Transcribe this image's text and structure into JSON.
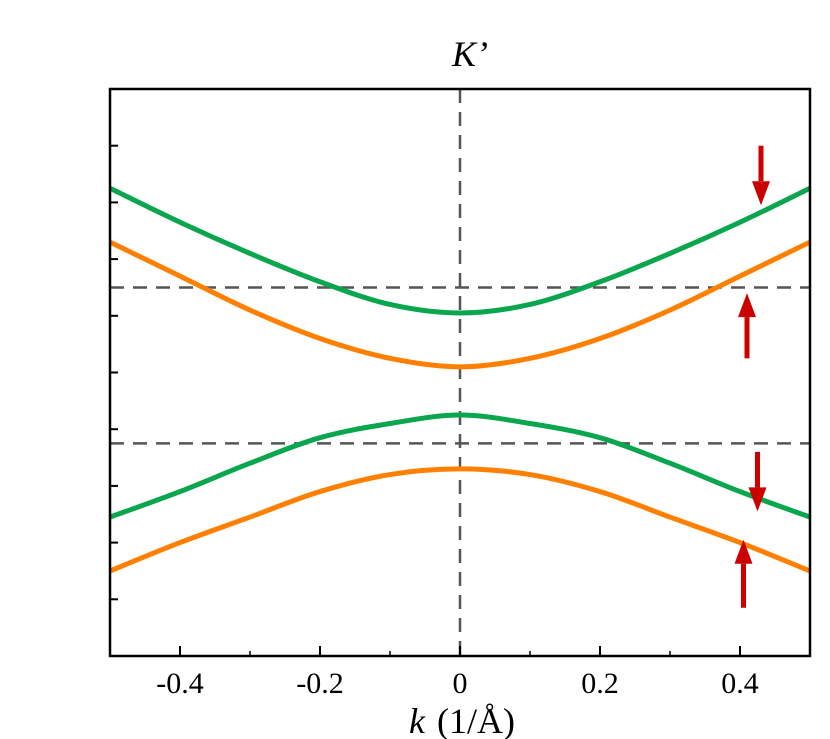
{
  "chart_data": {
    "type": "line",
    "title": "K’",
    "xlabel_var": "k",
    "xlabel_unit": "(1/Å)",
    "xlim": [
      -0.5,
      0.5
    ],
    "ylim": [
      -1.0,
      1.0
    ],
    "xticks": [
      -0.4,
      -0.2,
      0,
      0.2,
      0.4
    ],
    "xtick_labels": [
      "-0.4",
      "-0.2",
      "0",
      "0.2",
      "0.4"
    ],
    "yticks": [
      -0.8,
      -0.6,
      -0.4,
      -0.2,
      0.0,
      0.2,
      0.4,
      0.6,
      0.8
    ],
    "ytick_labels_shown": false,
    "reference_lines": {
      "vertical_x": 0,
      "horizontal_y": [
        0.3,
        -0.25
      ]
    },
    "colors": {
      "green": "#0aa64e",
      "orange": "#ff8000",
      "arrow": "#cc0000",
      "ref_line": "#555555"
    },
    "series": [
      {
        "band": "conduction",
        "spin": "down",
        "color": "green",
        "points": [
          [
            -0.5,
            0.65
          ],
          [
            -0.4,
            0.53
          ],
          [
            -0.3,
            0.42
          ],
          [
            -0.2,
            0.32
          ],
          [
            -0.1,
            0.24
          ],
          [
            0,
            0.21
          ],
          [
            0.1,
            0.24
          ],
          [
            0.2,
            0.32
          ],
          [
            0.3,
            0.42
          ],
          [
            0.4,
            0.53
          ],
          [
            0.5,
            0.65
          ]
        ]
      },
      {
        "band": "conduction",
        "spin": "up",
        "color": "orange",
        "points": [
          [
            -0.5,
            0.46
          ],
          [
            -0.4,
            0.34
          ],
          [
            -0.3,
            0.22
          ],
          [
            -0.2,
            0.12
          ],
          [
            -0.1,
            0.05
          ],
          [
            0,
            0.02
          ],
          [
            0.1,
            0.05
          ],
          [
            0.2,
            0.12
          ],
          [
            0.3,
            0.22
          ],
          [
            0.4,
            0.34
          ],
          [
            0.5,
            0.46
          ]
        ]
      },
      {
        "band": "valence",
        "spin": "down",
        "color": "green",
        "points": [
          [
            -0.5,
            -0.51
          ],
          [
            -0.4,
            -0.42
          ],
          [
            -0.3,
            -0.32
          ],
          [
            -0.2,
            -0.23
          ],
          [
            -0.1,
            -0.18
          ],
          [
            0,
            -0.15
          ],
          [
            0.1,
            -0.18
          ],
          [
            0.2,
            -0.23
          ],
          [
            0.3,
            -0.32
          ],
          [
            0.4,
            -0.42
          ],
          [
            0.5,
            -0.51
          ]
        ]
      },
      {
        "band": "valence",
        "spin": "up",
        "color": "orange",
        "points": [
          [
            -0.5,
            -0.7
          ],
          [
            -0.4,
            -0.6
          ],
          [
            -0.3,
            -0.51
          ],
          [
            -0.2,
            -0.42
          ],
          [
            -0.1,
            -0.36
          ],
          [
            0,
            -0.34
          ],
          [
            0.1,
            -0.36
          ],
          [
            0.2,
            -0.42
          ],
          [
            0.3,
            -0.51
          ],
          [
            0.4,
            -0.6
          ],
          [
            0.5,
            -0.7
          ]
        ]
      }
    ],
    "annotations": [
      {
        "type": "spin-arrow",
        "direction": "down",
        "x": 0.43,
        "y_from": 0.8,
        "y_to": 0.59
      },
      {
        "type": "spin-arrow",
        "direction": "up",
        "x": 0.41,
        "y_from": 0.05,
        "y_to": 0.28
      },
      {
        "type": "spin-arrow",
        "direction": "down",
        "x": 0.425,
        "y_from": -0.28,
        "y_to": -0.49
      },
      {
        "type": "spin-arrow",
        "direction": "up",
        "x": 0.405,
        "y_from": -0.83,
        "y_to": -0.59
      }
    ]
  }
}
